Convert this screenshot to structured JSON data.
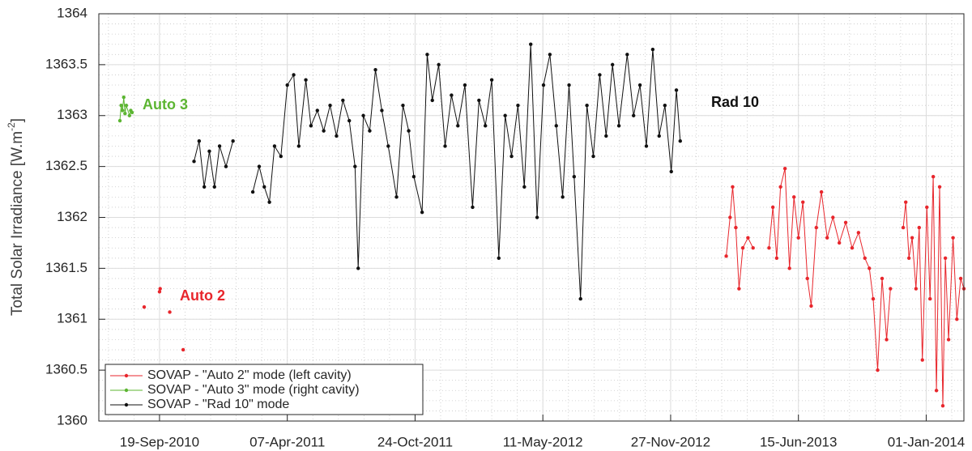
{
  "chart_data": {
    "type": "line",
    "ylabel": [
      "Total Solar Irradiance [W.m",
      "-2",
      "]"
    ],
    "xlim": [
      "2010-06-16",
      "2014-03-01"
    ],
    "xticks": [
      {
        "value": "2010-09-19",
        "label": "19-Sep-2010"
      },
      {
        "value": "2011-04-07",
        "label": "07-Apr-2011"
      },
      {
        "value": "2011-10-24",
        "label": "24-Oct-2011"
      },
      {
        "value": "2012-05-11",
        "label": "11-May-2012"
      },
      {
        "value": "2012-11-27",
        "label": "27-Nov-2012"
      },
      {
        "value": "2013-06-15",
        "label": "15-Jun-2013"
      },
      {
        "value": "2014-01-01",
        "label": "01-Jan-2014"
      }
    ],
    "ylim": [
      1360,
      1364
    ],
    "yticks": [
      1360,
      1360.5,
      1361,
      1361.5,
      1362,
      1362.5,
      1363,
      1363.5,
      1364
    ],
    "grid": true,
    "minor_grid": true,
    "legend": "lower left",
    "annotations": [
      {
        "text": "Auto 3",
        "color": "#5cb532"
      },
      {
        "text": "Auto 2",
        "color": "#e8262c"
      },
      {
        "text": "Rad 10",
        "color": "#111111"
      }
    ],
    "series": [
      {
        "name": "SOVAP - \"Auto 2\" mode (left cavity)",
        "color": "#e8262c",
        "x": [
          "2010-08-26",
          "2010-09-05",
          "2010-09-19",
          "2010-09-20",
          "2010-09-28",
          "2010-10-05",
          "2010-10-15",
          "2010-10-26",
          "2013-01-01",
          "2013-02-22",
          "2013-02-28",
          "2013-03-04",
          "2013-03-09",
          "2013-03-14",
          "2013-03-20",
          "2013-03-28",
          "2013-04-05",
          "2013-04-12",
          "2013-04-30",
          "2013-05-06",
          "2013-05-12",
          "2013-05-18",
          "2013-05-25",
          "2013-06-01",
          "2013-06-08",
          "2013-06-15",
          "2013-06-22",
          "2013-06-29",
          "2013-07-05",
          "2013-07-13",
          "2013-07-21",
          "2013-07-30",
          "2013-08-08",
          "2013-08-18",
          "2013-08-28",
          "2013-09-07",
          "2013-09-17",
          "2013-09-27",
          "2013-10-04",
          "2013-10-10",
          "2013-10-17",
          "2013-10-24",
          "2013-10-31",
          "2013-11-06",
          "2013-11-12",
          "2013-11-26",
          "2013-11-30",
          "2013-12-05",
          "2013-12-10",
          "2013-12-16",
          "2013-12-21",
          "2013-12-26",
          "2014-01-02",
          "2014-01-07",
          "2014-01-12",
          "2014-01-17",
          "2014-01-22",
          "2014-01-27",
          "2014-01-31",
          "2014-02-05",
          "2014-02-12",
          "2014-02-18",
          "2014-02-24",
          "2014-03-01"
        ],
        "values": [
          1361.12,
          null,
          1361.27,
          1361.3,
          null,
          1361.07,
          null,
          1360.7,
          null,
          1361.62,
          1362.0,
          1362.3,
          1361.9,
          1361.3,
          1361.7,
          1361.8,
          1361.7,
          null,
          1361.7,
          1362.1,
          1361.6,
          1362.3,
          1362.48,
          1361.5,
          1362.2,
          1361.8,
          1362.15,
          1361.4,
          1361.13,
          1361.9,
          1362.25,
          1361.8,
          1362.0,
          1361.75,
          1361.95,
          1361.7,
          1361.85,
          1361.6,
          1361.5,
          1361.2,
          1360.5,
          1361.4,
          1360.8,
          1361.3,
          null,
          1361.9,
          1362.15,
          1361.6,
          1361.8,
          1361.3,
          1361.9,
          1360.6,
          1362.1,
          1361.2,
          1362.4,
          1360.3,
          1362.3,
          1360.15,
          1361.6,
          1360.8,
          1361.8,
          1361.0,
          1361.4,
          1361.3
        ]
      },
      {
        "name": "SOVAP - \"Auto 3\" mode (right cavity)",
        "color": "#5cb532",
        "x": [
          "2010-07-19",
          "2010-07-21",
          "2010-07-23",
          "2010-07-25",
          "2010-07-27",
          "2010-07-29",
          "2010-08-03",
          "2010-08-05",
          "2010-08-07"
        ],
        "values": [
          1362.95,
          1363.1,
          1363.05,
          1363.18,
          1363.02,
          1363.1,
          1363.0,
          1363.05,
          1363.03
        ]
      },
      {
        "name": "SOVAP - \"Rad 10\" mode",
        "color": "#111111",
        "x": [
          "2010-11-12",
          "2010-11-20",
          "2010-11-28",
          "2010-12-06",
          "2010-12-14",
          "2010-12-22",
          "2011-01-01",
          "2011-01-12",
          "2011-01-28",
          "2011-02-12",
          "2011-02-22",
          "2011-03-02",
          "2011-03-10",
          "2011-03-18",
          "2011-03-28",
          "2011-04-07",
          "2011-04-17",
          "2011-04-25",
          "2011-05-06",
          "2011-05-14",
          "2011-05-24",
          "2011-06-03",
          "2011-06-13",
          "2011-06-23",
          "2011-07-03",
          "2011-07-13",
          "2011-07-22",
          "2011-07-27",
          "2011-08-04",
          "2011-08-14",
          "2011-08-23",
          "2011-09-02",
          "2011-09-12",
          "2011-09-25",
          "2011-10-05",
          "2011-10-14",
          "2011-10-22",
          "2011-11-04",
          "2011-11-12",
          "2011-11-20",
          "2011-11-30",
          "2011-12-10",
          "2011-12-20",
          "2011-12-30",
          "2012-01-10",
          "2012-01-22",
          "2012-02-01",
          "2012-02-11",
          "2012-02-21",
          "2012-03-03",
          "2012-03-13",
          "2012-03-23",
          "2012-04-02",
          "2012-04-12",
          "2012-04-22",
          "2012-05-02",
          "2012-05-12",
          "2012-05-22",
          "2012-06-01",
          "2012-06-11",
          "2012-06-21",
          "2012-06-29",
          "2012-07-09",
          "2012-07-19",
          "2012-07-29",
          "2012-08-08",
          "2012-08-18",
          "2012-08-28",
          "2012-09-07",
          "2012-09-20",
          "2012-09-30",
          "2012-10-10",
          "2012-10-20",
          "2012-10-30",
          "2012-11-09",
          "2012-11-18",
          "2012-11-28",
          "2012-12-06",
          "2012-12-12"
        ],
        "values": [
          1362.55,
          1362.75,
          1362.3,
          1362.65,
          1362.3,
          1362.7,
          1362.5,
          1362.75,
          null,
          1362.25,
          1362.5,
          1362.3,
          1362.15,
          1362.7,
          1362.6,
          1363.3,
          1363.4,
          1362.7,
          1363.35,
          1362.9,
          1363.05,
          1362.85,
          1363.1,
          1362.8,
          1363.15,
          1362.95,
          1362.5,
          1361.5,
          1363.0,
          1362.85,
          1363.45,
          1363.05,
          1362.7,
          1362.2,
          1363.1,
          1362.85,
          1362.4,
          1362.05,
          1363.6,
          1363.15,
          1363.5,
          1362.7,
          1363.2,
          1362.9,
          1363.3,
          1362.1,
          1363.15,
          1362.9,
          1363.35,
          1361.6,
          1363.0,
          1362.6,
          1363.1,
          1362.3,
          1363.7,
          1362.0,
          1363.3,
          1363.6,
          1362.9,
          1362.2,
          1363.3,
          1362.4,
          1361.2,
          1363.1,
          1362.6,
          1363.4,
          1362.8,
          1363.5,
          1362.9,
          1363.6,
          1363.0,
          1363.3,
          1362.7,
          1363.65,
          1362.8,
          1363.1,
          1362.45,
          1363.25,
          1362.75
        ]
      }
    ]
  }
}
